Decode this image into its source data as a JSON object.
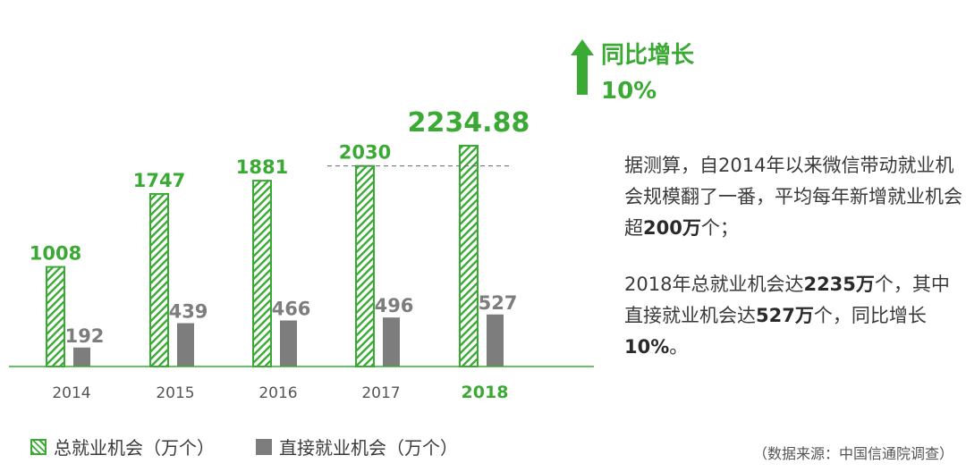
{
  "chart_data": {
    "type": "bar",
    "categories": [
      "2014",
      "2015",
      "2016",
      "2017",
      "2018"
    ],
    "series": [
      {
        "name": "总就业机会（万个）",
        "values": [
          1008,
          1747,
          1881,
          2030,
          2234.88
        ]
      },
      {
        "name": "直接就业机会（万个）",
        "values": [
          192,
          439,
          466,
          496,
          527
        ]
      }
    ],
    "value_labels": {
      "total": [
        "1008",
        "1747",
        "1881",
        "2030",
        "2234.88"
      ],
      "direct": [
        "192",
        "439",
        "466",
        "496",
        "527"
      ]
    },
    "highlight_category": "2018",
    "reference_line": 2030,
    "colors": {
      "total": "#3aaa35",
      "direct": "#7d7d7d",
      "axis": "#3aaa35",
      "tick": "#555555"
    },
    "grid": false
  },
  "growth": {
    "label": "同比增长",
    "value": "10%",
    "icon": "up-arrow-icon"
  },
  "notes": {
    "p1_pre": "据测算，自2014年以来微信带动就业机会规模翻了一番，平均每年新增就业机会超",
    "p1_bold": "200万",
    "p1_post": "个；",
    "p2_a": "2018年总就业机会达",
    "p2_b": "2235万",
    "p2_c": "个，其中直接就业机会达",
    "p2_d": "527万",
    "p2_e": "个，同比增长",
    "p2_f": "10%",
    "p2_g": "。"
  },
  "legend": {
    "total": "总就业机会（万个）",
    "direct": "直接就业机会（万个）"
  },
  "source": "（数据来源：中国信通院调查）"
}
